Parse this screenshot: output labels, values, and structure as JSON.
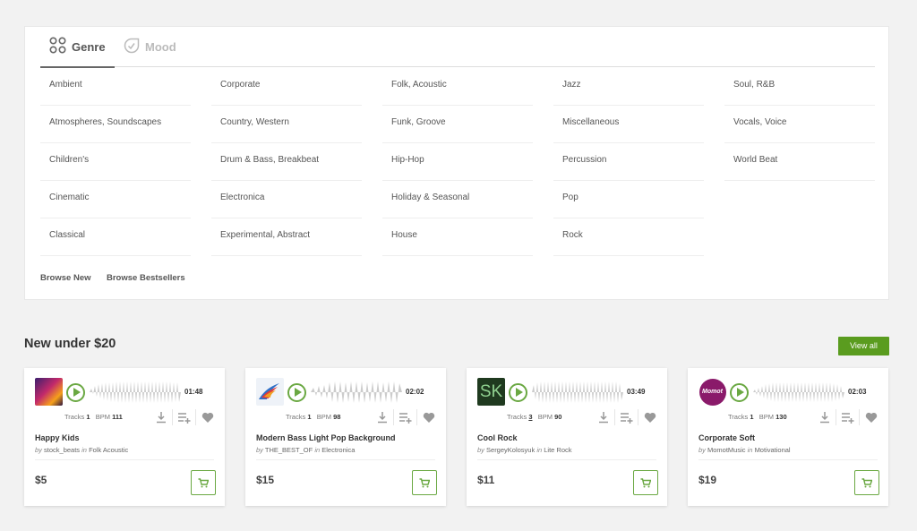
{
  "tabs": {
    "genre": "Genre",
    "mood": "Mood"
  },
  "genres": {
    "col1": [
      "Ambient",
      "Atmospheres, Soundscapes",
      "Children's",
      "Cinematic",
      "Classical"
    ],
    "col2": [
      "Corporate",
      "Country, Western",
      "Drum & Bass, Breakbeat",
      "Electronica",
      "Experimental, Abstract"
    ],
    "col3": [
      "Folk, Acoustic",
      "Funk, Groove",
      "Hip-Hop",
      "Holiday & Seasonal",
      "House"
    ],
    "col4": [
      "Jazz",
      "Miscellaneous",
      "Percussion",
      "Pop",
      "Rock"
    ],
    "col5": [
      "Soul, R&B",
      "Vocals, Voice",
      "World Beat"
    ]
  },
  "browse": {
    "new": "Browse New",
    "bestsellers": "Browse Bestsellers"
  },
  "section": {
    "title": "New under $20",
    "view_all": "View all"
  },
  "labels": {
    "tracks": "Tracks",
    "bpm": "BPM",
    "by": "by",
    "in": "in"
  },
  "cards": [
    {
      "duration": "01:48",
      "tracks": "1",
      "bpm": "111",
      "title": "Happy Kids",
      "author": "stock_beats",
      "category": "Folk Acoustic",
      "price": "$5"
    },
    {
      "duration": "02:02",
      "tracks": "1",
      "bpm": "98",
      "title": "Modern Bass Light Pop Background",
      "author": "THE_BEST_OF",
      "category": "Electronica",
      "price": "$15"
    },
    {
      "duration": "03:49",
      "tracks": "3",
      "bpm": "90",
      "title": "Cool Rock",
      "author": "SergeyKolosyuk",
      "category": "Lite Rock",
      "price": "$11",
      "thumb_text": "SK"
    },
    {
      "duration": "02:03",
      "tracks": "1",
      "bpm": "130",
      "title": "Corporate Soft",
      "author": "MomotMusic",
      "category": "Motivational",
      "price": "$19",
      "thumb_text": "Momot"
    }
  ],
  "colors": {
    "accent": "#5a9c1f",
    "play": "#6aa842",
    "wave": "#cccccc"
  }
}
